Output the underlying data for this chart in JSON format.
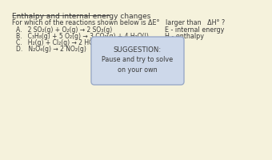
{
  "title": "Enthalpy and internal energy changes",
  "question": "For which of the reactions shown below is ΔE°   larger than   ΔH° ?",
  "reactions": [
    "A.   2 SO₂(g) + O₂(g) → 2 SO₃(g)",
    "B.   C₃H₈(g) + 5 O₂(g) → 3 CO₂(g) + 4 H₂O(l)",
    "C.   H₂(g) + Cl₂(g) → 2 HCl(g)",
    "D.   N₂O₄(g) → 2 NO₂(g)"
  ],
  "legend_line1": "E - internal energy",
  "legend_line2": "H - enthalpy",
  "suggestion_title": "SUGGESTION:",
  "suggestion_body": "Pause and try to solve\non your own",
  "bg_color": "#f5f2dc",
  "box_fill": "#cdd8ea",
  "box_edge": "#9aaac8",
  "text_color": "#3a3a3a",
  "title_fontsize": 6.5,
  "question_fontsize": 5.8,
  "reaction_fontsize": 5.5,
  "legend_fontsize": 5.8,
  "suggestion_title_fontsize": 6.2,
  "suggestion_body_fontsize": 5.8
}
